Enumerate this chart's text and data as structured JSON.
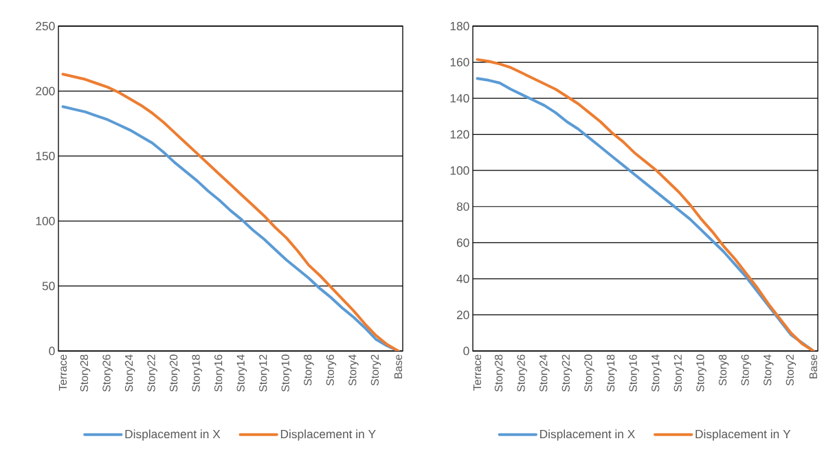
{
  "chart_data": [
    {
      "type": "line",
      "categories": [
        "Terrace",
        null,
        "Story28",
        null,
        "Story26",
        null,
        "Story24",
        null,
        "Story22",
        null,
        "Story20",
        null,
        "Story18",
        null,
        "Story16",
        null,
        "Story14",
        null,
        "Story12",
        null,
        "Story10",
        null,
        "Story8",
        null,
        "Story6",
        null,
        "Story4",
        null,
        "Story2",
        null,
        "Base"
      ],
      "series": [
        {
          "name": "Displacement in X",
          "color": "#5b9bd5",
          "values": [
            188,
            186,
            184,
            181,
            178,
            174,
            170,
            165,
            160,
            153,
            145,
            138,
            131,
            123,
            116,
            108,
            101,
            93,
            86,
            78,
            70,
            63,
            56,
            48,
            41,
            33,
            26,
            18,
            9,
            4,
            0
          ]
        },
        {
          "name": "Displacement in Y",
          "color": "#ed7d31",
          "values": [
            213,
            211,
            209,
            206,
            203,
            199,
            194,
            189,
            183,
            176,
            168,
            160,
            152,
            144,
            136,
            128,
            120,
            112,
            104,
            95,
            87,
            77,
            66,
            58,
            49,
            40,
            31,
            21,
            12,
            5,
            0
          ]
        }
      ],
      "ylim": [
        0,
        250
      ],
      "yticks": [
        0,
        50,
        100,
        150,
        200,
        250
      ],
      "grid": "y",
      "legend": "bottom",
      "line_style": "solid"
    },
    {
      "type": "line",
      "categories": [
        "Terrace",
        null,
        "Story28",
        null,
        "Story26",
        null,
        "Story24",
        null,
        "Story22",
        null,
        "Story20",
        null,
        "Story18",
        null,
        "Story16",
        null,
        "Story14",
        null,
        "Story12",
        null,
        "Story10",
        null,
        "Story8",
        null,
        "Story6",
        null,
        "Story4",
        null,
        "Story2",
        null,
        "Base"
      ],
      "series": [
        {
          "name": "Displacement in X",
          "color": "#5b9bd5",
          "values": [
            151,
            150,
            148.5,
            145,
            142,
            139,
            136,
            132,
            127,
            123,
            118,
            113,
            108,
            103,
            98,
            93,
            88,
            83,
            78,
            73,
            67,
            61,
            55,
            48,
            41,
            33,
            25,
            17,
            9,
            null,
            0
          ]
        },
        {
          "name": "Displacement in Y",
          "color": "#ed7d31",
          "values": [
            161.5,
            160.5,
            159,
            157,
            154,
            151,
            148,
            145,
            141,
            137,
            132,
            127,
            121,
            116,
            110,
            105,
            100,
            94,
            88,
            81,
            73,
            66,
            58,
            51,
            43,
            35,
            26,
            18,
            10,
            4,
            0
          ]
        }
      ],
      "ylim": [
        0,
        180
      ],
      "yticks": [
        0,
        20,
        40,
        60,
        80,
        100,
        120,
        140,
        160,
        180
      ],
      "grid": "y",
      "legend": "bottom",
      "line_style": "solid"
    }
  ]
}
